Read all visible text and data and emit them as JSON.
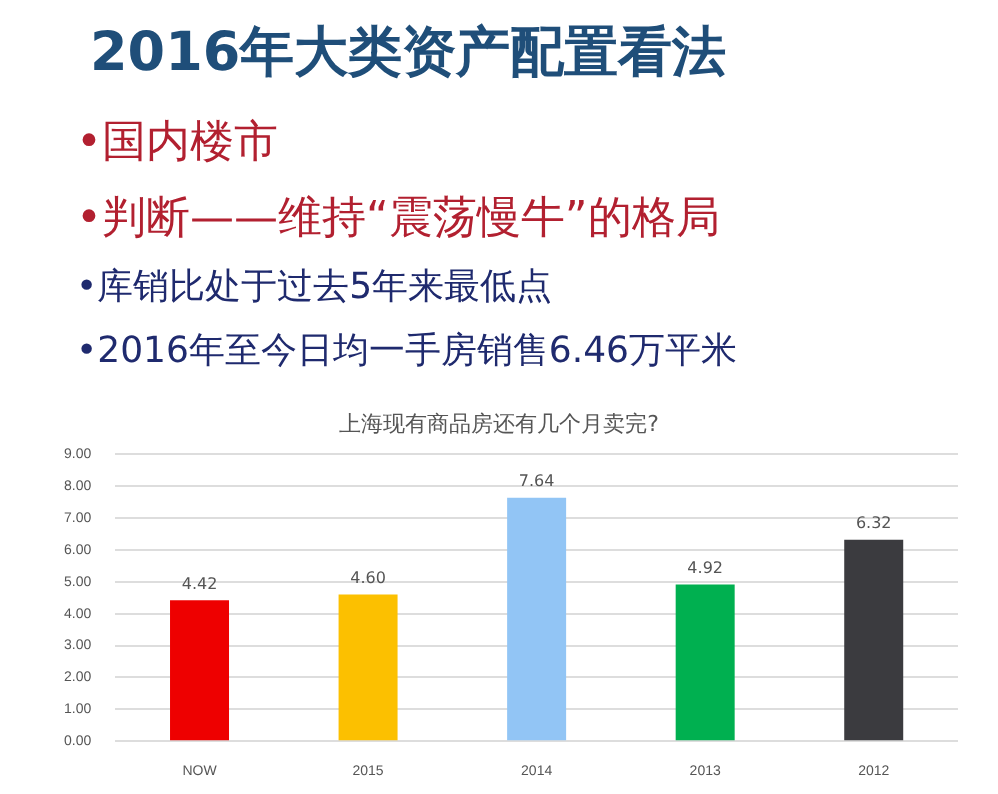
{
  "chart_data": {
    "type": "bar",
    "title": "上海现有商品房还有几个月卖完?",
    "annotations": [
      "2016年大类资产配置看法",
      "•国内楼市",
      "•判断——维持“震荡慢牛”的格局",
      "•库销比处于过去5年来最低点",
      "•2016年至今日均一手房销售6.46万平米"
    ],
    "categories": [
      "NOW",
      "2015",
      "2014",
      "2013",
      "2012"
    ],
    "values": [
      4.42,
      4.6,
      7.64,
      4.92,
      6.32
    ],
    "colors": [
      "#ee0000",
      "#fcc000",
      "#92c5f5",
      "#00b050",
      "#3b3b3f"
    ],
    "data_labels": true,
    "value_labels": [
      "4.42",
      "4.60",
      "7.64",
      "4.92",
      "6.32"
    ],
    "ylim": [
      0,
      9
    ],
    "yticks": [
      {
        "value": 0,
        "label": "0.00"
      },
      {
        "value": 1,
        "label": "1.00"
      },
      {
        "value": 2,
        "label": "2.00"
      },
      {
        "value": 3,
        "label": "3.00"
      },
      {
        "value": 4,
        "label": "4.00"
      },
      {
        "value": 5,
        "label": "5.00"
      },
      {
        "value": 6,
        "label": "6.00"
      },
      {
        "value": 7,
        "label": "7.00"
      },
      {
        "value": 8,
        "label": "8.00"
      },
      {
        "value": 9,
        "label": "9.00"
      }
    ],
    "grid": "y"
  }
}
